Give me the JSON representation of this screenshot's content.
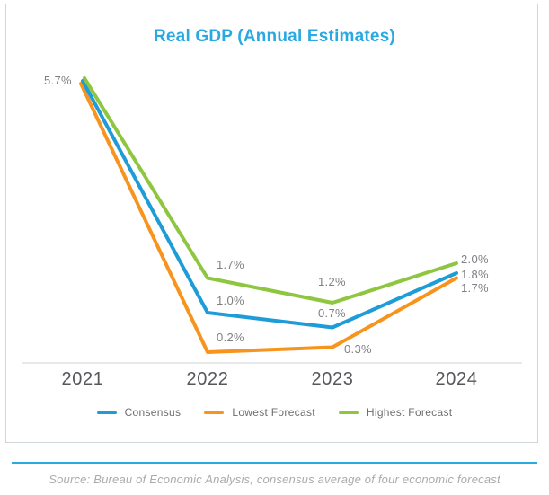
{
  "header": {
    "title": "Real GDP (Annual Estimates)"
  },
  "chart_data": {
    "type": "line",
    "title": "Real GDP (Annual Estimates)",
    "categories": [
      "2021",
      "2022",
      "2023",
      "2024"
    ],
    "series": [
      {
        "name": "Consensus",
        "color": "#1e9cd7",
        "values": [
          5.7,
          1.0,
          0.7,
          1.8
        ]
      },
      {
        "name": "Lowest Forecast",
        "color": "#f7941d",
        "values": [
          5.7,
          0.2,
          0.3,
          1.7
        ]
      },
      {
        "name": "Highest Forecast",
        "color": "#8ec63f",
        "values": [
          5.7,
          1.7,
          1.2,
          2.0
        ]
      }
    ],
    "ylim": [
      0,
      6
    ],
    "grid": false,
    "legend_position": "bottom",
    "value_format": "percent",
    "point_labels": {
      "shared_start": "5.7%",
      "consensus": [
        "1.0%",
        "0.7%",
        "1.8%"
      ],
      "lowest": [
        "0.2%",
        "0.3%",
        "1.7%"
      ],
      "highest": [
        "1.7%",
        "1.2%",
        "2.0%"
      ]
    }
  },
  "footer": {
    "source": "Source: Bureau of Economic Analysis, consensus average of four economic forecast"
  },
  "colors": {
    "title": "#29a9e1",
    "divider": "#29abe2",
    "axis_line": "#e7e9ea",
    "point_label_gray": "#7d7f83",
    "year_label_gray": "#55575b"
  }
}
